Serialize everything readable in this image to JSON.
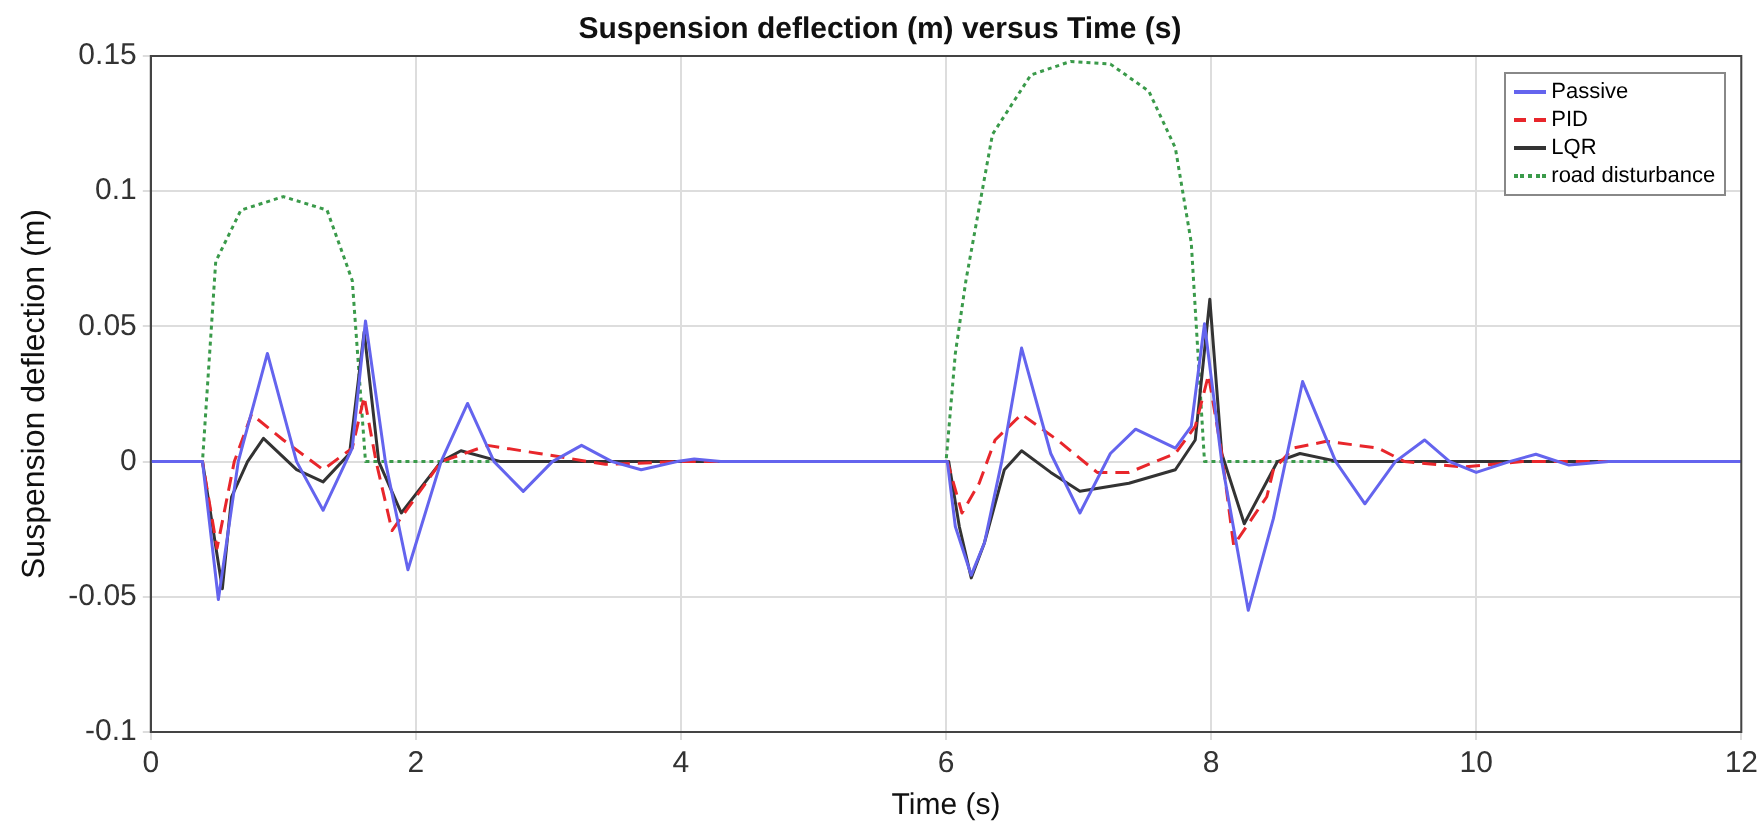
{
  "chart_data": {
    "type": "line",
    "title": "Suspension deflection (m) versus Time (s)",
    "xlabel": "Time (s)",
    "ylabel": "Suspension deflection (m)",
    "xlim": [
      0,
      12
    ],
    "xticks": [
      0,
      2,
      4,
      6,
      8,
      10,
      12
    ],
    "ylim": [
      -0.1,
      0.15
    ],
    "yticks": [
      -0.1,
      -0.05,
      0,
      0.05,
      0.1,
      0.15
    ],
    "grid": true,
    "legend": "top right",
    "marker": "none",
    "series": [
      {
        "name": "Passive",
        "color": "#6464ee",
        "line_style": "solid",
        "x": [
          0,
          0.39,
          0.51,
          0.66,
          0.88,
          1.1,
          1.3,
          1.52,
          1.62,
          1.77,
          1.94,
          2.19,
          2.39,
          2.59,
          2.81,
          3.03,
          3.25,
          3.48,
          3.7,
          3.97,
          4.1,
          4.3,
          6.01,
          6.07,
          6.19,
          6.29,
          6.42,
          6.57,
          6.79,
          7.01,
          7.24,
          7.43,
          7.73,
          7.85,
          7.95,
          8.08,
          8.28,
          8.47,
          8.69,
          8.94,
          9.16,
          9.39,
          9.61,
          9.8,
          10.0,
          10.25,
          10.45,
          10.7,
          11.0,
          12
        ],
        "values": [
          0,
          0,
          -0.051,
          0,
          0.04,
          0,
          -0.018,
          0.005,
          0.052,
          0,
          -0.04,
          0,
          0.0215,
          0,
          -0.011,
          0,
          0.006,
          0,
          -0.003,
          0,
          0.001,
          0,
          0,
          -0.024,
          -0.042,
          -0.03,
          0,
          0.042,
          0.003,
          -0.019,
          0.003,
          0.012,
          0.005,
          0.013,
          0.051,
          0,
          -0.055,
          -0.021,
          0.0296,
          0,
          -0.0156,
          0,
          0.008,
          0,
          -0.004,
          0,
          0.0027,
          -0.0013,
          0,
          0
        ]
      },
      {
        "name": "PID",
        "color": "#e8262b",
        "line_style": "dashed",
        "x": [
          0,
          0.39,
          0.5,
          0.63,
          0.76,
          1.0,
          1.3,
          1.52,
          1.61,
          1.7,
          1.82,
          2.19,
          2.54,
          2.93,
          3.43,
          4.0,
          6.01,
          6.12,
          6.25,
          6.37,
          6.57,
          6.84,
          7.14,
          7.38,
          7.73,
          7.88,
          7.98,
          8.08,
          8.17,
          8.42,
          8.47,
          8.62,
          8.87,
          9.26,
          9.46,
          9.9,
          10.35,
          12
        ],
        "values": [
          0,
          0,
          -0.032,
          0,
          0.0175,
          0.008,
          -0.003,
          0.005,
          0.024,
          0,
          -0.0255,
          0,
          0.006,
          0.003,
          -0.001,
          0,
          0,
          -0.019,
          -0.008,
          0.008,
          0.0175,
          0.008,
          -0.004,
          -0.004,
          0.003,
          0.013,
          0.032,
          0.003,
          -0.031,
          -0.013,
          -0.003,
          0.005,
          0.0075,
          0.005,
          0,
          -0.002,
          0,
          0
        ]
      },
      {
        "name": "LQR",
        "color": "#333333",
        "line_style": "solid",
        "x": [
          0,
          0.39,
          0.54,
          0.61,
          0.73,
          0.85,
          1.1,
          1.3,
          1.5,
          1.61,
          1.72,
          1.89,
          2.19,
          2.34,
          2.64,
          6.02,
          6.1,
          6.19,
          6.29,
          6.44,
          6.57,
          6.79,
          7.01,
          7.38,
          7.73,
          7.88,
          7.99,
          8.08,
          8.25,
          8.5,
          8.67,
          8.96,
          12
        ],
        "values": [
          0,
          0,
          -0.047,
          -0.013,
          0,
          0.0086,
          -0.003,
          -0.0075,
          0.003,
          0.048,
          0,
          -0.019,
          0,
          0.004,
          0,
          0,
          -0.024,
          -0.043,
          -0.03,
          -0.003,
          0.004,
          -0.004,
          -0.011,
          -0.008,
          -0.003,
          0.008,
          0.06,
          0.003,
          -0.023,
          0,
          0.003,
          0,
          0
        ]
      },
      {
        "name": "road disturbance",
        "color": "#3a9a4a",
        "line_style": "dotted",
        "x": [
          0,
          0.39,
          0.49,
          0.68,
          1.0,
          1.33,
          1.52,
          1.62,
          6.0,
          6.07,
          6.15,
          6.35,
          6.64,
          6.94,
          7.24,
          7.53,
          7.73,
          7.85,
          7.95,
          12
        ],
        "values": [
          0,
          0,
          0.074,
          0.093,
          0.098,
          0.093,
          0.067,
          0,
          0,
          0.04,
          0.067,
          0.121,
          0.143,
          0.148,
          0.147,
          0.137,
          0.116,
          0.081,
          0,
          0
        ]
      }
    ]
  }
}
